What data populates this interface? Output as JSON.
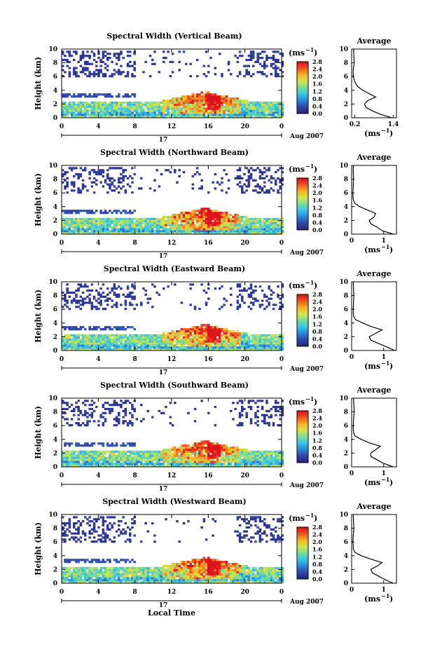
{
  "figure": {
    "xlabel": "Local Time",
    "date_marker": "17",
    "date_label": "Aug 2007",
    "colorbar_unit": "(ms",
    "colorbar_unit_exp": "−1",
    "colorbar_unit_close": ")",
    "average_title": "Average",
    "colorbar_ticks": [
      "2.8",
      "2.4",
      "2.0",
      "1.6",
      "1.2",
      "0.8",
      "0.4",
      "0.0"
    ],
    "colors": {
      "low": "#3344a0",
      "mid": "#38b8e8",
      "high": "#e82020",
      "accent_red": "#e02020",
      "profile_line": "#000000"
    }
  },
  "chart_data": [
    {
      "type": "heatmap",
      "title": "Spectral Width (Vertical Beam)",
      "ylabel": "Height (km)",
      "xlim": [
        0,
        24
      ],
      "ylim": [
        0,
        10
      ],
      "xticks": [
        "0",
        "4",
        "8",
        "12",
        "16",
        "20",
        "0"
      ],
      "yticks": [
        "0",
        "2",
        "4",
        "6",
        "8",
        "10"
      ],
      "zlim": [
        0,
        2.8
      ],
      "zunit": "ms^-1",
      "average_profile": {
        "xticks": [
          "0.2",
          "1.4"
        ],
        "xlim": [
          0.1,
          1.5
        ],
        "height_km": [
          0,
          0.5,
          1,
          1.5,
          2,
          2.5,
          3,
          3.5,
          4,
          4.5,
          5,
          5.5,
          6,
          7,
          8,
          9,
          10
        ],
        "width_ms": [
          1.35,
          1.0,
          0.75,
          0.55,
          0.5,
          0.6,
          0.85,
          0.65,
          0.45,
          0.3,
          0.22,
          0.18,
          0.15,
          0.15,
          0.18,
          0.17,
          0.16
        ]
      }
    },
    {
      "type": "heatmap",
      "title": "Spectral Width (Northward Beam)",
      "ylabel": "Height (km)",
      "xlim": [
        0,
        24
      ],
      "ylim": [
        0,
        10
      ],
      "xticks": [
        "0",
        "4",
        "8",
        "12",
        "16",
        "20",
        "0"
      ],
      "yticks": [
        "0",
        "2",
        "4",
        "6",
        "8",
        "10"
      ],
      "zlim": [
        0,
        2.8
      ],
      "zunit": "ms^-1",
      "average_profile": {
        "xticks": [
          "0",
          "1"
        ],
        "xlim": [
          0,
          1.4
        ],
        "height_km": [
          0,
          0.5,
          1,
          1.5,
          2,
          2.5,
          3,
          3.5,
          4,
          4.5,
          5,
          5.5,
          6,
          7,
          8,
          9,
          10
        ],
        "width_ms": [
          1.3,
          0.95,
          0.8,
          0.6,
          0.55,
          0.7,
          0.75,
          0.5,
          0.25,
          0.1,
          0.05,
          0.04,
          0.04,
          0.05,
          0.06,
          0.05,
          0.05
        ]
      }
    },
    {
      "type": "heatmap",
      "title": "Spectral Width (Eastward Beam)",
      "ylabel": "Height (km)",
      "xlim": [
        0,
        24
      ],
      "ylim": [
        0,
        10
      ],
      "xticks": [
        "0",
        "4",
        "8",
        "12",
        "16",
        "20",
        "0"
      ],
      "yticks": [
        "0",
        "2",
        "4",
        "6",
        "8",
        "10"
      ],
      "zlim": [
        0,
        2.8
      ],
      "zunit": "ms^-1",
      "average_profile": {
        "xticks": [
          "0",
          "1"
        ],
        "xlim": [
          0,
          1.4
        ],
        "height_km": [
          0,
          0.5,
          1,
          1.5,
          2,
          2.5,
          3,
          3.5,
          4,
          4.5,
          5,
          5.5,
          6,
          7,
          8,
          9,
          10
        ],
        "width_ms": [
          1.35,
          1.1,
          0.85,
          0.6,
          0.55,
          0.75,
          0.95,
          0.6,
          0.35,
          0.12,
          0.06,
          0.05,
          0.05,
          0.06,
          0.07,
          0.06,
          0.05
        ]
      }
    },
    {
      "type": "heatmap",
      "title": "Spectral Width (Southward Beam)",
      "ylabel": "Height (km)",
      "xlim": [
        0,
        24
      ],
      "ylim": [
        0,
        10
      ],
      "xticks": [
        "0",
        "4",
        "8",
        "12",
        "16",
        "20",
        "0"
      ],
      "yticks": [
        "0",
        "2",
        "4",
        "6",
        "8",
        "10"
      ],
      "zlim": [
        0,
        2.8
      ],
      "zunit": "ms^-1",
      "average_profile": {
        "xticks": [
          "0",
          "1"
        ],
        "xlim": [
          0,
          1.4
        ],
        "height_km": [
          0,
          0.5,
          1,
          1.5,
          2,
          2.5,
          3,
          3.5,
          4,
          4.5,
          5,
          5.5,
          6,
          7,
          8,
          9,
          10
        ],
        "width_ms": [
          1.3,
          1.0,
          0.8,
          0.6,
          0.6,
          0.75,
          0.9,
          0.55,
          0.3,
          0.1,
          0.06,
          0.05,
          0.05,
          0.06,
          0.08,
          0.07,
          0.06
        ]
      }
    },
    {
      "type": "heatmap",
      "title": "Spectral Width (Westward Beam)",
      "ylabel": "Height (km)",
      "xlim": [
        0,
        24
      ],
      "ylim": [
        0,
        10
      ],
      "xticks": [
        "0",
        "4",
        "8",
        "12",
        "16",
        "20",
        "0"
      ],
      "yticks": [
        "0",
        "2",
        "4",
        "6",
        "8",
        "10"
      ],
      "zlim": [
        0,
        2.8
      ],
      "zunit": "ms^-1",
      "average_profile": {
        "xticks": [
          "0",
          "1"
        ],
        "xlim": [
          0,
          1.4
        ],
        "height_km": [
          0,
          0.5,
          1,
          1.5,
          2,
          2.5,
          3,
          3.5,
          4,
          4.5,
          5,
          5.5,
          6,
          7,
          8,
          9,
          10
        ],
        "width_ms": [
          1.3,
          1.05,
          0.85,
          0.65,
          0.6,
          0.8,
          0.95,
          0.6,
          0.3,
          0.1,
          0.05,
          0.05,
          0.04,
          0.05,
          0.07,
          0.06,
          0.05
        ]
      }
    }
  ]
}
